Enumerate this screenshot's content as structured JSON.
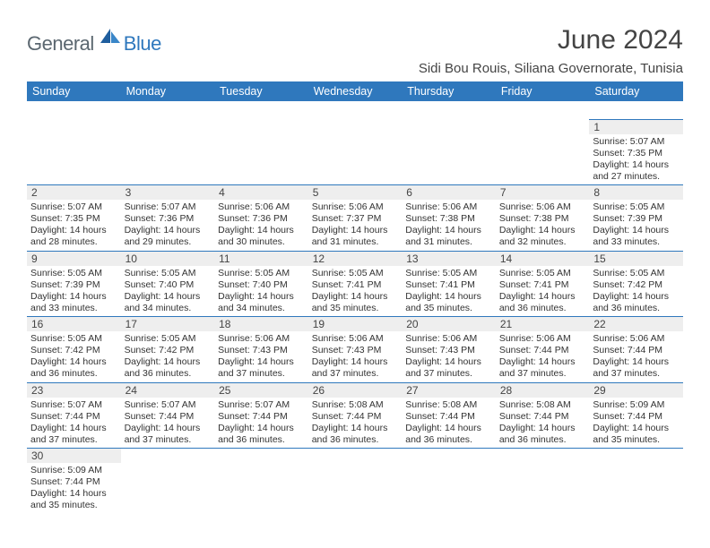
{
  "logo": {
    "text1": "General",
    "text2": "Blue"
  },
  "title": "June 2024",
  "location": "Sidi Bou Rouis, Siliana Governorate, Tunisia",
  "colors": {
    "header_bg": "#2f78bd",
    "header_text": "#ffffff",
    "daynum_bg": "#eeeeee",
    "border": "#2f78bd",
    "logo_gray": "#5b6770",
    "logo_blue": "#2f78bd"
  },
  "weekdays": [
    "Sunday",
    "Monday",
    "Tuesday",
    "Wednesday",
    "Thursday",
    "Friday",
    "Saturday"
  ],
  "weeks": [
    [
      null,
      null,
      null,
      null,
      null,
      null,
      {
        "n": "1",
        "sr": "Sunrise: 5:07 AM",
        "ss": "Sunset: 7:35 PM",
        "d1": "Daylight: 14 hours",
        "d2": "and 27 minutes."
      }
    ],
    [
      {
        "n": "2",
        "sr": "Sunrise: 5:07 AM",
        "ss": "Sunset: 7:35 PM",
        "d1": "Daylight: 14 hours",
        "d2": "and 28 minutes."
      },
      {
        "n": "3",
        "sr": "Sunrise: 5:07 AM",
        "ss": "Sunset: 7:36 PM",
        "d1": "Daylight: 14 hours",
        "d2": "and 29 minutes."
      },
      {
        "n": "4",
        "sr": "Sunrise: 5:06 AM",
        "ss": "Sunset: 7:36 PM",
        "d1": "Daylight: 14 hours",
        "d2": "and 30 minutes."
      },
      {
        "n": "5",
        "sr": "Sunrise: 5:06 AM",
        "ss": "Sunset: 7:37 PM",
        "d1": "Daylight: 14 hours",
        "d2": "and 31 minutes."
      },
      {
        "n": "6",
        "sr": "Sunrise: 5:06 AM",
        "ss": "Sunset: 7:38 PM",
        "d1": "Daylight: 14 hours",
        "d2": "and 31 minutes."
      },
      {
        "n": "7",
        "sr": "Sunrise: 5:06 AM",
        "ss": "Sunset: 7:38 PM",
        "d1": "Daylight: 14 hours",
        "d2": "and 32 minutes."
      },
      {
        "n": "8",
        "sr": "Sunrise: 5:05 AM",
        "ss": "Sunset: 7:39 PM",
        "d1": "Daylight: 14 hours",
        "d2": "and 33 minutes."
      }
    ],
    [
      {
        "n": "9",
        "sr": "Sunrise: 5:05 AM",
        "ss": "Sunset: 7:39 PM",
        "d1": "Daylight: 14 hours",
        "d2": "and 33 minutes."
      },
      {
        "n": "10",
        "sr": "Sunrise: 5:05 AM",
        "ss": "Sunset: 7:40 PM",
        "d1": "Daylight: 14 hours",
        "d2": "and 34 minutes."
      },
      {
        "n": "11",
        "sr": "Sunrise: 5:05 AM",
        "ss": "Sunset: 7:40 PM",
        "d1": "Daylight: 14 hours",
        "d2": "and 34 minutes."
      },
      {
        "n": "12",
        "sr": "Sunrise: 5:05 AM",
        "ss": "Sunset: 7:41 PM",
        "d1": "Daylight: 14 hours",
        "d2": "and 35 minutes."
      },
      {
        "n": "13",
        "sr": "Sunrise: 5:05 AM",
        "ss": "Sunset: 7:41 PM",
        "d1": "Daylight: 14 hours",
        "d2": "and 35 minutes."
      },
      {
        "n": "14",
        "sr": "Sunrise: 5:05 AM",
        "ss": "Sunset: 7:41 PM",
        "d1": "Daylight: 14 hours",
        "d2": "and 36 minutes."
      },
      {
        "n": "15",
        "sr": "Sunrise: 5:05 AM",
        "ss": "Sunset: 7:42 PM",
        "d1": "Daylight: 14 hours",
        "d2": "and 36 minutes."
      }
    ],
    [
      {
        "n": "16",
        "sr": "Sunrise: 5:05 AM",
        "ss": "Sunset: 7:42 PM",
        "d1": "Daylight: 14 hours",
        "d2": "and 36 minutes."
      },
      {
        "n": "17",
        "sr": "Sunrise: 5:05 AM",
        "ss": "Sunset: 7:42 PM",
        "d1": "Daylight: 14 hours",
        "d2": "and 36 minutes."
      },
      {
        "n": "18",
        "sr": "Sunrise: 5:06 AM",
        "ss": "Sunset: 7:43 PM",
        "d1": "Daylight: 14 hours",
        "d2": "and 37 minutes."
      },
      {
        "n": "19",
        "sr": "Sunrise: 5:06 AM",
        "ss": "Sunset: 7:43 PM",
        "d1": "Daylight: 14 hours",
        "d2": "and 37 minutes."
      },
      {
        "n": "20",
        "sr": "Sunrise: 5:06 AM",
        "ss": "Sunset: 7:43 PM",
        "d1": "Daylight: 14 hours",
        "d2": "and 37 minutes."
      },
      {
        "n": "21",
        "sr": "Sunrise: 5:06 AM",
        "ss": "Sunset: 7:44 PM",
        "d1": "Daylight: 14 hours",
        "d2": "and 37 minutes."
      },
      {
        "n": "22",
        "sr": "Sunrise: 5:06 AM",
        "ss": "Sunset: 7:44 PM",
        "d1": "Daylight: 14 hours",
        "d2": "and 37 minutes."
      }
    ],
    [
      {
        "n": "23",
        "sr": "Sunrise: 5:07 AM",
        "ss": "Sunset: 7:44 PM",
        "d1": "Daylight: 14 hours",
        "d2": "and 37 minutes."
      },
      {
        "n": "24",
        "sr": "Sunrise: 5:07 AM",
        "ss": "Sunset: 7:44 PM",
        "d1": "Daylight: 14 hours",
        "d2": "and 37 minutes."
      },
      {
        "n": "25",
        "sr": "Sunrise: 5:07 AM",
        "ss": "Sunset: 7:44 PM",
        "d1": "Daylight: 14 hours",
        "d2": "and 36 minutes."
      },
      {
        "n": "26",
        "sr": "Sunrise: 5:08 AM",
        "ss": "Sunset: 7:44 PM",
        "d1": "Daylight: 14 hours",
        "d2": "and 36 minutes."
      },
      {
        "n": "27",
        "sr": "Sunrise: 5:08 AM",
        "ss": "Sunset: 7:44 PM",
        "d1": "Daylight: 14 hours",
        "d2": "and 36 minutes."
      },
      {
        "n": "28",
        "sr": "Sunrise: 5:08 AM",
        "ss": "Sunset: 7:44 PM",
        "d1": "Daylight: 14 hours",
        "d2": "and 36 minutes."
      },
      {
        "n": "29",
        "sr": "Sunrise: 5:09 AM",
        "ss": "Sunset: 7:44 PM",
        "d1": "Daylight: 14 hours",
        "d2": "and 35 minutes."
      }
    ],
    [
      {
        "n": "30",
        "sr": "Sunrise: 5:09 AM",
        "ss": "Sunset: 7:44 PM",
        "d1": "Daylight: 14 hours",
        "d2": "and 35 minutes."
      },
      null,
      null,
      null,
      null,
      null,
      null
    ]
  ]
}
